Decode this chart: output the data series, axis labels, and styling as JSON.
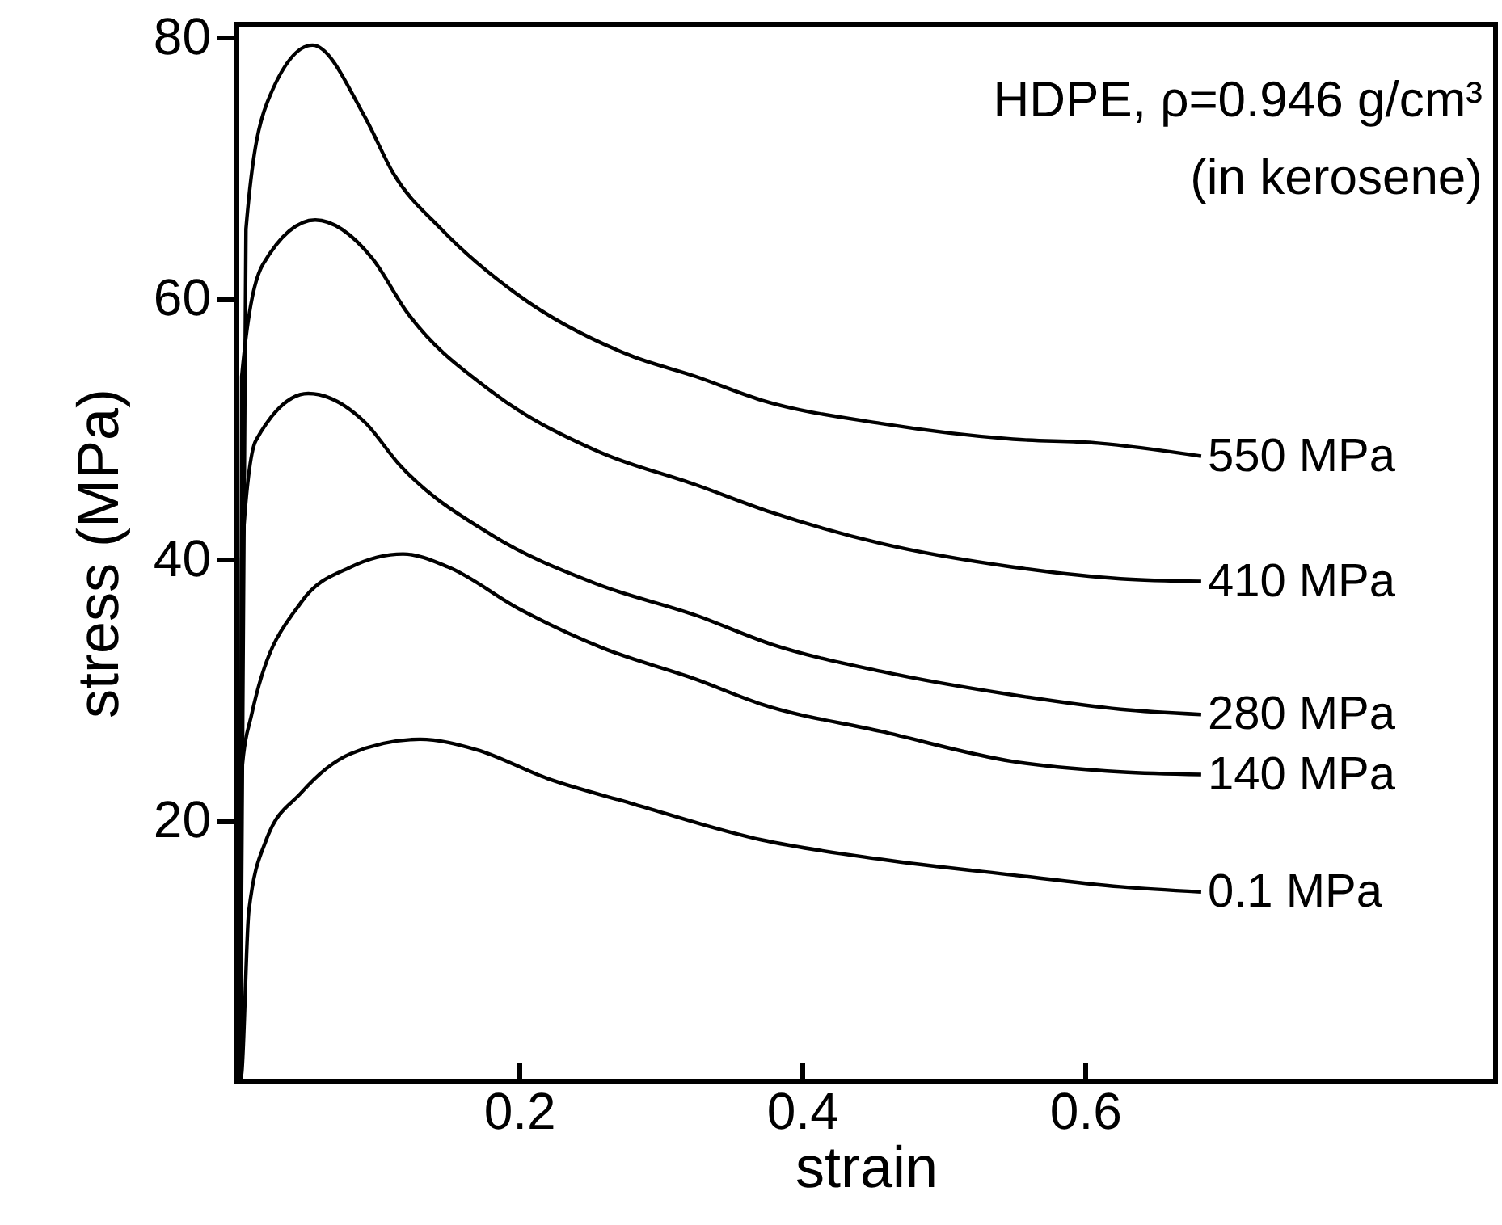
{
  "chart_data": {
    "type": "line",
    "xlabel": "strain",
    "ylabel": "stress (MPa)",
    "xlim": [
      0,
      0.89
    ],
    "ylim": [
      0,
      81
    ],
    "xticks": [
      0.2,
      0.4,
      0.6
    ],
    "yticks": [
      20,
      40,
      60,
      80
    ],
    "grid": false,
    "line_style": "solid",
    "marker": "none",
    "annotations": [
      "HDPE, ρ=0.946 g/cm³",
      "(in kerosene)"
    ],
    "series": [
      {
        "name": "550 MPa",
        "color": "#000000",
        "x": [
          0.003,
          0.007,
          0.022,
          0.054,
          0.091,
          0.111,
          0.145,
          0.2,
          0.279,
          0.325,
          0.371,
          0.456,
          0.549,
          0.609,
          0.682
        ],
        "values": [
          0,
          65.3,
          75,
          79.4,
          73.9,
          69.6,
          65.3,
          60.2,
          55.6,
          54,
          52.2,
          50.4,
          49.2,
          48.9,
          47.9
        ]
      },
      {
        "name": "410 MPa",
        "color": "#000000",
        "x": [
          0.003,
          0.004,
          0.019,
          0.056,
          0.096,
          0.121,
          0.18,
          0.255,
          0.325,
          0.378,
          0.456,
          0.549,
          0.625,
          0.682
        ],
        "values": [
          0,
          54,
          62.6,
          66,
          63.1,
          58.9,
          52.9,
          48.3,
          45.7,
          43.6,
          41.2,
          39.4,
          38.5,
          38.3
        ]
      },
      {
        "name": "280 MPa",
        "color": "#000000",
        "x": [
          0.003,
          0.004,
          0.014,
          0.051,
          0.091,
          0.115,
          0.18,
          0.255,
          0.325,
          0.378,
          0.456,
          0.549,
          0.625,
          0.682
        ],
        "values": [
          0,
          40,
          49.1,
          52.7,
          50.5,
          47.3,
          41.9,
          38.1,
          35.7,
          33.5,
          31.4,
          29.6,
          28.5,
          28.1
        ]
      },
      {
        "name": "140 MPa",
        "color": "#000000",
        "x": [
          0.003,
          0.004,
          0.011,
          0.046,
          0.081,
          0.118,
          0.15,
          0.2,
          0.259,
          0.325,
          0.371,
          0.456,
          0.549,
          0.625,
          0.682
        ],
        "values": [
          0,
          23.7,
          28.1,
          36.7,
          39.4,
          40.4,
          39.4,
          36.2,
          33.2,
          30.8,
          28.9,
          26.8,
          24.5,
          23.7,
          23.5
        ]
      },
      {
        "name": "0.1 MPa",
        "color": "#000000",
        "x": [
          0.003,
          0.004,
          0.009,
          0.021,
          0.046,
          0.081,
          0.13,
          0.17,
          0.22,
          0.279,
          0.371,
          0.456,
          0.549,
          0.625,
          0.682
        ],
        "values": [
          0,
          0.6,
          13,
          18.4,
          22.1,
          25.1,
          26.2,
          25.4,
          23.2,
          21.3,
          18.5,
          17,
          15.8,
          14.9,
          14.5
        ]
      }
    ]
  }
}
